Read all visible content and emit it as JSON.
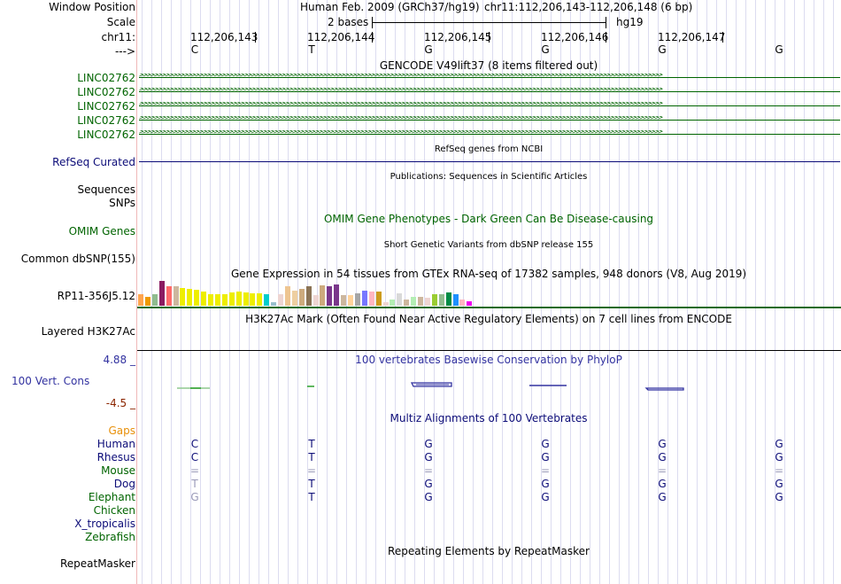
{
  "header": {
    "window_position_label": "Window Position",
    "scale_label": "Scale",
    "chrom_label": "chr11:",
    "strand_label": "--->",
    "assembly": "Human Feb. 2009 (GRCh37/hg19)",
    "position": "chr11:112,206,143-112,206,148 (6 bp)",
    "scale_value": "2 bases",
    "scale_assembly": "hg19",
    "coordinates": [
      "112,206,143",
      "112,206,144",
      "112,206,145",
      "112,206,146",
      "112,206,147"
    ],
    "sequence": [
      "C",
      "T",
      "G",
      "G",
      "G",
      "G"
    ]
  },
  "tracks": {
    "gencode": {
      "title": "GENCODE V49lift37 (8 items filtered out)",
      "items": [
        "LINC02762",
        "LINC02762",
        "LINC02762",
        "LINC02762",
        "LINC02762"
      ],
      "color": "#006400"
    },
    "refseq": {
      "title": "RefSeq genes from NCBI",
      "label": "RefSeq Curated",
      "color": "#0c0c78"
    },
    "publications": {
      "title": "Publications: Sequences in Scientific Articles",
      "label1": "Sequences",
      "label2": "SNPs"
    },
    "omim": {
      "title": "OMIM Gene Phenotypes - Dark Green Can Be Disease-causing",
      "label": "OMIM Genes",
      "color": "#006400"
    },
    "dbsnp": {
      "title": "Short Genetic Variants from dbSNP release 155",
      "label": "Common dbSNP(155)"
    },
    "gtex": {
      "title": "Gene Expression in 54 tissues from GTEx RNA-seq of 17382 samples, 948 donors (V8, Aug 2019)",
      "label": "RP11-356J5.12",
      "bars": [
        {
          "v": 13,
          "c": "#FFA54F"
        },
        {
          "v": 10,
          "c": "#EE9A00"
        },
        {
          "v": 13,
          "c": "#8FBC8F"
        },
        {
          "v": 28,
          "c": "#8B1C62"
        },
        {
          "v": 22,
          "c": "#FF6A6A"
        },
        {
          "v": 22,
          "c": "#CDB79E"
        },
        {
          "v": 20,
          "c": "#EEEE00"
        },
        {
          "v": 19,
          "c": "#EEEE00"
        },
        {
          "v": 18,
          "c": "#EEEE00"
        },
        {
          "v": 16,
          "c": "#EEEE00"
        },
        {
          "v": 13,
          "c": "#EEEE00"
        },
        {
          "v": 13,
          "c": "#EEEE00"
        },
        {
          "v": 13,
          "c": "#EEEE00"
        },
        {
          "v": 15,
          "c": "#EEEE00"
        },
        {
          "v": 16,
          "c": "#EEEE00"
        },
        {
          "v": 15,
          "c": "#EEEE00"
        },
        {
          "v": 14,
          "c": "#EEEE00"
        },
        {
          "v": 14,
          "c": "#EEEE00"
        },
        {
          "v": 13,
          "c": "#00CDCD"
        },
        {
          "v": 4,
          "c": "#9AC0CD"
        },
        {
          "v": 13,
          "c": "#EED5D2"
        },
        {
          "v": 22,
          "c": "#EEC591"
        },
        {
          "v": 17,
          "c": "#EECFA1"
        },
        {
          "v": 19,
          "c": "#CDAA7D"
        },
        {
          "v": 22,
          "c": "#8B7355"
        },
        {
          "v": 12,
          "c": "#EED5D2"
        },
        {
          "v": 23,
          "c": "#CDAA7D"
        },
        {
          "v": 22,
          "c": "#7A378B"
        },
        {
          "v": 24,
          "c": "#7A378B"
        },
        {
          "v": 12,
          "c": "#CDB79E"
        },
        {
          "v": 12,
          "c": "#FFD39B"
        },
        {
          "v": 14,
          "c": "#A6A6A6"
        },
        {
          "v": 17,
          "c": "#7777FF"
        },
        {
          "v": 16,
          "c": "#FFB6C1"
        },
        {
          "v": 16,
          "c": "#CD9B1D"
        },
        {
          "v": 4,
          "c": "#EED5D2"
        },
        {
          "v": 7,
          "c": "#B4EEB4"
        },
        {
          "v": 14,
          "c": "#D9D9D9"
        },
        {
          "v": 7,
          "c": "#CDB79E"
        },
        {
          "v": 10,
          "c": "#B4EEB4"
        },
        {
          "v": 10,
          "c": "#CDB79E"
        },
        {
          "v": 9,
          "c": "#EED5D2"
        },
        {
          "v": 13,
          "c": "#9ACD32"
        },
        {
          "v": 13,
          "c": "#8FBC8F"
        },
        {
          "v": 15,
          "c": "#008B45"
        },
        {
          "v": 13,
          "c": "#1E90FF"
        },
        {
          "v": 7,
          "c": "#FFB6C1"
        },
        {
          "v": 5,
          "c": "#EE00EE"
        }
      ]
    },
    "h3k27ac": {
      "title": "H3K27Ac Mark (Often Found Near Active Regulatory Elements) on 7 cell lines from ENCODE",
      "label": "Layered H3K27Ac"
    },
    "conservation": {
      "title": "100 vertebrates Basewise Conservation by PhyloP",
      "label": "100 Vert. Cons",
      "max_label": "4.88 _",
      "min_label": "-4.5 _",
      "pos_color": "#3232a0",
      "min_color": "#8b2500"
    },
    "multiz": {
      "title": "Multiz Alignments of 100 Vertebrates",
      "gaps_label": "Gaps",
      "species": [
        {
          "name": "Human",
          "bases": [
            "C",
            "T",
            "G",
            "G",
            "G",
            "G"
          ],
          "color": "#0c0c78",
          "base_color": "#0c0c78"
        },
        {
          "name": "Rhesus",
          "bases": [
            "C",
            "T",
            "G",
            "G",
            "G",
            "G"
          ],
          "color": "#0c0c78",
          "base_color": "#0c0c78"
        },
        {
          "name": "Mouse",
          "bases": [
            "=",
            "=",
            "=",
            "=",
            "=",
            "="
          ],
          "color": "#006400",
          "base_color": "#9a9ab8"
        },
        {
          "name": "Dog",
          "bases": [
            "T",
            "T",
            "G",
            "G",
            "G",
            "G"
          ],
          "color": "#0c0c78",
          "base_color": "#0c0c78"
        },
        {
          "name": "Elephant",
          "bases": [
            "G",
            "T",
            "G",
            "G",
            "G",
            "G"
          ],
          "color": "#006400",
          "base_color": "#0c0c78"
        },
        {
          "name": "Chicken",
          "bases": [],
          "color": "#006400",
          "base_color": "#0c0c78"
        },
        {
          "name": "X_tropicalis",
          "bases": [],
          "color": "#0c0c78",
          "base_color": "#0c0c78"
        },
        {
          "name": "Zebrafish",
          "bases": [],
          "color": "#006400",
          "base_color": "#0c0c78"
        }
      ]
    },
    "repeatmasker": {
      "title": "Repeating Elements by RepeatMasker",
      "label": "RepeatMasker"
    }
  }
}
